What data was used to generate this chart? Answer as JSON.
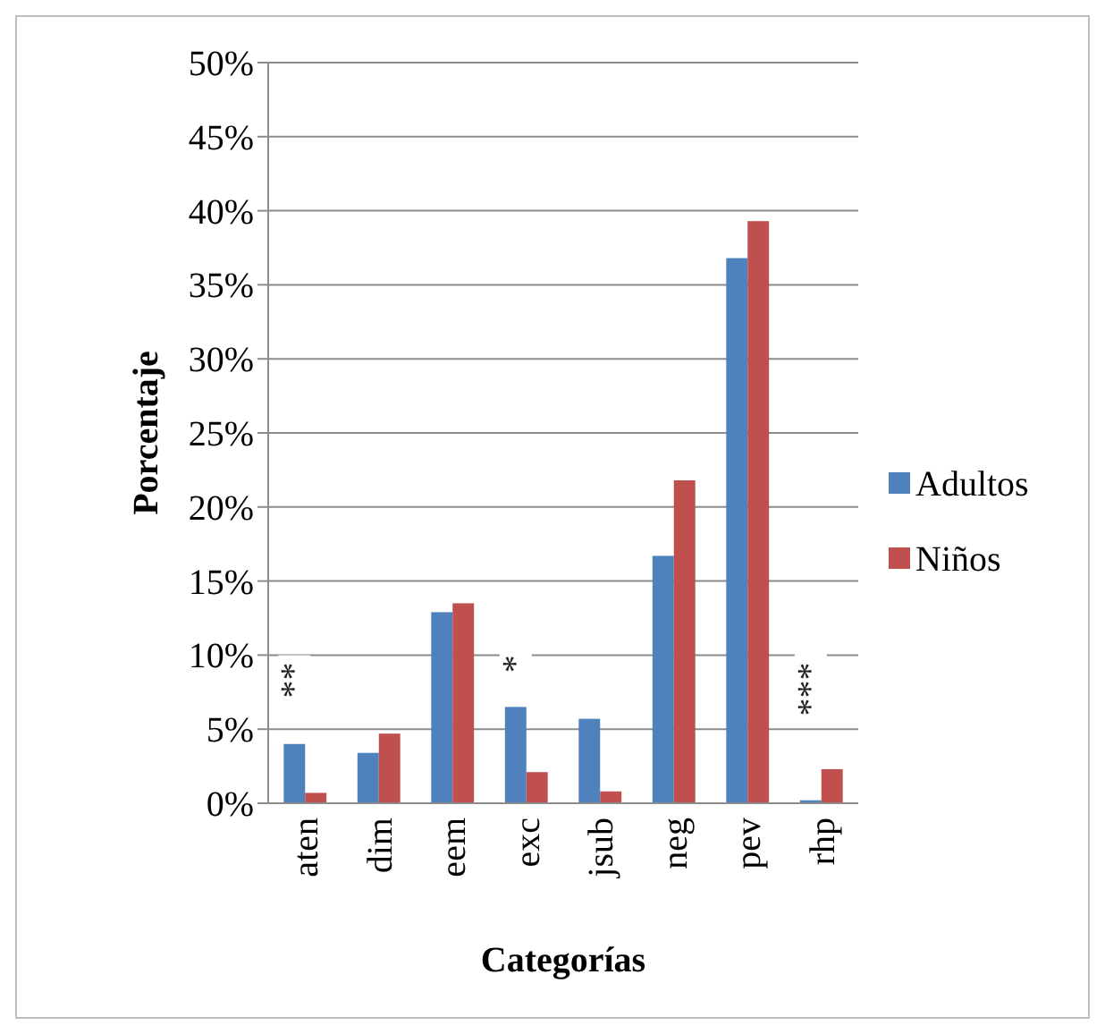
{
  "chart_data": {
    "type": "bar",
    "xlabel": "Categorías",
    "ylabel": "Porcentaje",
    "categories": [
      "aten",
      "dim",
      "eem",
      "exc",
      "jsub",
      "neg",
      "pev",
      "rhp"
    ],
    "series": [
      {
        "name": "Adultos",
        "color": "#4f81bd",
        "values": [
          4.0,
          3.4,
          12.9,
          6.5,
          5.7,
          16.7,
          36.8,
          0.2
        ]
      },
      {
        "name": "Niños",
        "color": "#c0504d",
        "values": [
          0.7,
          4.7,
          13.5,
          2.1,
          0.8,
          21.8,
          39.3,
          2.3
        ]
      }
    ],
    "ylim": [
      0,
      50
    ],
    "yticks": [
      {
        "value": 0,
        "label": "0%"
      },
      {
        "value": 5,
        "label": "5%"
      },
      {
        "value": 10,
        "label": "10%"
      },
      {
        "value": 15,
        "label": "15%"
      },
      {
        "value": 20,
        "label": "20%"
      },
      {
        "value": 25,
        "label": "25%"
      },
      {
        "value": 30,
        "label": "30%"
      },
      {
        "value": 35,
        "label": "35%"
      },
      {
        "value": 40,
        "label": "40%"
      },
      {
        "value": 45,
        "label": "45%"
      },
      {
        "value": 50,
        "label": "50%"
      }
    ],
    "grid": "y",
    "legend": "right",
    "annotations": [
      "**",
      "*",
      "***"
    ]
  }
}
